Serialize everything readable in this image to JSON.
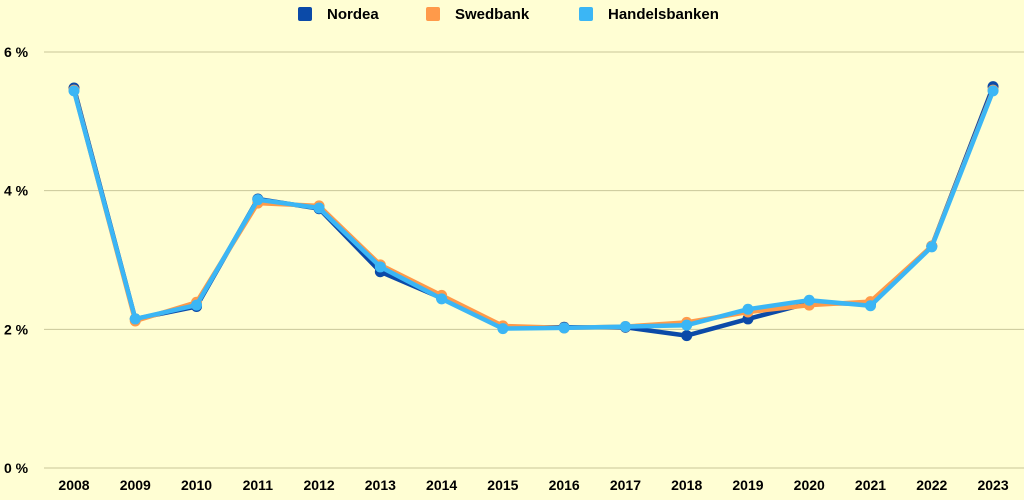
{
  "chart_data": {
    "type": "line",
    "title": "",
    "xlabel": "",
    "ylabel": "",
    "categories": [
      "2008",
      "2009",
      "2010",
      "2011",
      "2012",
      "2013",
      "2014",
      "2015",
      "2016",
      "2017",
      "2018",
      "2019",
      "2020",
      "2021",
      "2022",
      "2023"
    ],
    "ylim": [
      0,
      6
    ],
    "y_ticks": [
      {
        "value": 0,
        "label": "0 %"
      },
      {
        "value": 2,
        "label": "2 %"
      },
      {
        "value": 4,
        "label": "4 %"
      },
      {
        "value": 6,
        "label": "6 %"
      }
    ],
    "grid": true,
    "legend_position": "top-center",
    "series": [
      {
        "name": "Nordea",
        "color": "#0b4aa8",
        "values": [
          5.48,
          2.15,
          2.33,
          3.88,
          3.74,
          2.83,
          2.45,
          2.03,
          2.03,
          2.03,
          1.91,
          2.15,
          2.38,
          2.37,
          3.2,
          5.5
        ]
      },
      {
        "name": "Swedbank",
        "color": "#ff9a4a",
        "values": [
          5.45,
          2.12,
          2.39,
          3.82,
          3.78,
          2.93,
          2.49,
          2.05,
          2.02,
          2.04,
          2.1,
          2.25,
          2.35,
          2.4,
          3.2,
          5.45
        ]
      },
      {
        "name": "Handelsbanken",
        "color": "#3bb6f5",
        "values": [
          5.44,
          2.15,
          2.35,
          3.87,
          3.75,
          2.9,
          2.44,
          2.01,
          2.02,
          2.04,
          2.06,
          2.29,
          2.42,
          2.34,
          3.19,
          5.44
        ]
      }
    ]
  }
}
